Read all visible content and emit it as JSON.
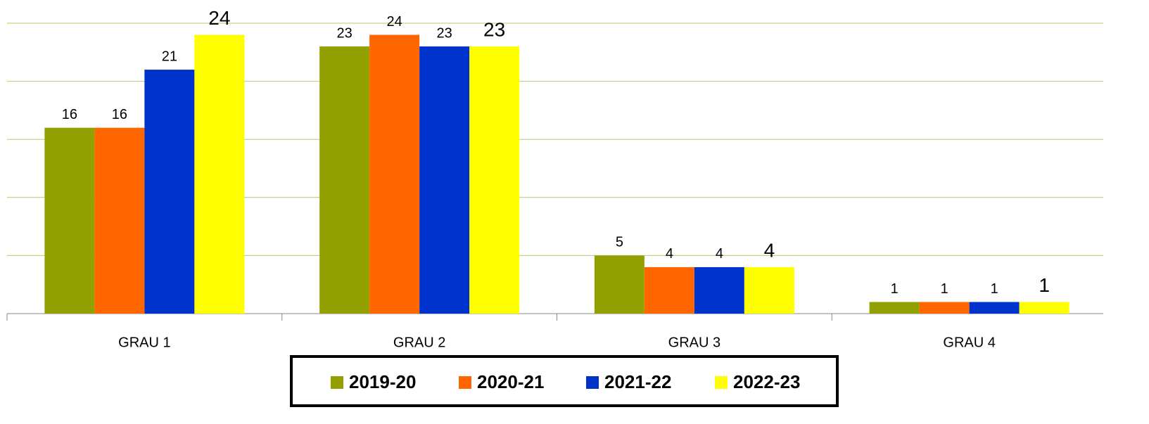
{
  "chart_data": {
    "type": "bar",
    "categories": [
      "GRAU 1",
      "GRAU 2",
      "GRAU 3",
      "GRAU 4"
    ],
    "series": [
      {
        "name": "2019-20",
        "color": "#93a100",
        "values": [
          16,
          23,
          5,
          1
        ]
      },
      {
        "name": "2020-21",
        "color": "#ff6600",
        "values": [
          16,
          24,
          4,
          1
        ]
      },
      {
        "name": "2021-22",
        "color": "#0033cc",
        "values": [
          21,
          23,
          4,
          1
        ]
      },
      {
        "name": "2022-23",
        "color": "#ffff00",
        "values": [
          24,
          23,
          4,
          1
        ]
      }
    ],
    "ylim": [
      0,
      25
    ],
    "yticks": [
      0,
      5,
      10,
      15,
      20,
      25
    ],
    "grid": true,
    "legend": "bottom"
  }
}
